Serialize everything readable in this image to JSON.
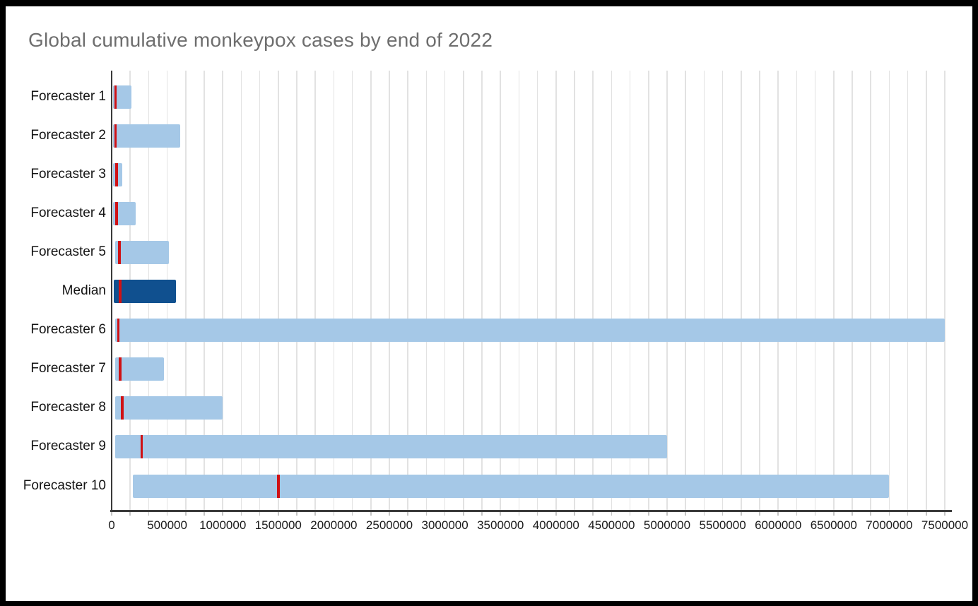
{
  "figure": {
    "frame_color": "#000000",
    "background_color": "#ffffff",
    "title_color": "#6e6e6e"
  },
  "chart_data": {
    "type": "bar",
    "orientation": "horizontal",
    "title": "Global cumulative monkeypox cases by end of 2022",
    "xlabel": "",
    "ylabel": "",
    "xlim": [
      0,
      7500000
    ],
    "x_tick_step": 500000,
    "x_ticks": [
      "0",
      "500000",
      "1000000",
      "1500000",
      "2000000",
      "2500000",
      "3000000",
      "3500000",
      "4000000",
      "4500000",
      "5000000",
      "5500000",
      "6000000",
      "6500000",
      "7000000",
      "7500000"
    ],
    "gridline_step": 166667,
    "grid": true,
    "legend_position": "none",
    "bar_meaning": "forecast interval (range bar)",
    "marker_meaning": "point forecast (red line)",
    "colors": {
      "interval_bar": "#a5c8e7",
      "median_bar": "#10508f",
      "point_marker": "#d01114",
      "gridline": "#e2e2e2",
      "axis": "#3a3a3a"
    },
    "categories": [
      "Forecaster 1",
      "Forecaster 2",
      "Forecaster 3",
      "Forecaster 4",
      "Forecaster 5",
      "Median",
      "Forecaster 6",
      "Forecaster 7",
      "Forecaster 8",
      "Forecaster 9",
      "Forecaster 10"
    ],
    "series": [
      {
        "name": "Forecaster 1",
        "range_low": 15000,
        "range_high": 180000,
        "point": 35000,
        "is_median": false
      },
      {
        "name": "Forecaster 2",
        "range_low": 15000,
        "range_high": 615000,
        "point": 35000,
        "is_median": false
      },
      {
        "name": "Forecaster 3",
        "range_low": 15000,
        "range_high": 95000,
        "point": 45000,
        "is_median": false
      },
      {
        "name": "Forecaster 4",
        "range_low": 15000,
        "range_high": 215000,
        "point": 45000,
        "is_median": false
      },
      {
        "name": "Forecaster 5",
        "range_low": 30000,
        "range_high": 515000,
        "point": 70000,
        "is_median": false
      },
      {
        "name": "Median",
        "range_low": 20000,
        "range_high": 580000,
        "point": 75000,
        "is_median": true
      },
      {
        "name": "Forecaster 6",
        "range_low": 30000,
        "range_high": 7500000,
        "point": 60000,
        "is_median": false
      },
      {
        "name": "Forecaster 7",
        "range_low": 30000,
        "range_high": 470000,
        "point": 75000,
        "is_median": false
      },
      {
        "name": "Forecaster 8",
        "range_low": 30000,
        "range_high": 1000000,
        "point": 95000,
        "is_median": false
      },
      {
        "name": "Forecaster 9",
        "range_low": 30000,
        "range_high": 5000000,
        "point": 270000,
        "is_median": false
      },
      {
        "name": "Forecaster 10",
        "range_low": 190000,
        "range_high": 7000000,
        "point": 1500000,
        "is_median": false
      }
    ]
  }
}
